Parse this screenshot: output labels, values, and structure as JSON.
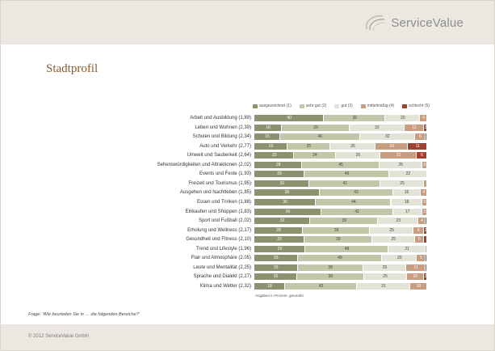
{
  "header": {
    "logo_text": "ServiceValue",
    "logo_icon": "swirl-logo-icon"
  },
  "page": {
    "title": "Stadtprofil"
  },
  "chart_data": {
    "type": "bar",
    "orientation": "horizontal",
    "stacked": true,
    "series_names": [
      "ausgezeichnet (1)",
      "sehr gut (2)",
      "gut (3)",
      "mittelmäßig (4)",
      "schlecht (5)"
    ],
    "colors": [
      "#8d9170",
      "#c3c6a8",
      "#e4e3d8",
      "#c99d80",
      "#a2412f"
    ],
    "categories": [
      "Arbeit und Ausbildung (1,89)",
      "Leben und Wohnen (2,39)",
      "Schulen und Bildung (2,34)",
      "Auto und Verkehr (2,77)",
      "Umwelt und Sauberkeit (2,64)",
      "Sehenswürdigkeiten und Attraktionen (2,02)",
      "Events und Feste (1,93)",
      "Freizeit und Tourismus (1,95)",
      "Ausgehen und Nachtleben (1,85)",
      "Essen und Trinken (1,88)",
      "Einkaufen und Shoppen (1,83)",
      "Sport und Fußball (2,02)",
      "Erholung und Wellness (2,17)",
      "Gesundheit und Fitness (2,10)",
      "Trend und Lifestyle (1,96)",
      "Flair und Atmosphäre (2,05)",
      "Leute und Mentalität (2,25)",
      "Sprache und Dialekt (2,27)",
      "Klima und Wetter (2,32)"
    ],
    "values": [
      [
        40,
        35,
        20,
        4,
        0
      ],
      [
        16,
        39,
        32,
        11,
        2
      ],
      [
        15,
        46,
        32,
        6,
        1
      ],
      [
        19,
        25,
        26,
        19,
        11
      ],
      [
        23,
        24,
        26,
        21,
        6
      ],
      [
        28,
        45,
        25,
        3,
        0
      ],
      [
        29,
        49,
        22,
        0,
        0
      ],
      [
        32,
        41,
        25,
        2,
        0
      ],
      [
        38,
        43,
        16,
        4,
        0
      ],
      [
        36,
        44,
        18,
        3,
        0
      ],
      [
        39,
        42,
        17,
        3,
        0
      ],
      [
        32,
        39,
        23,
        4,
        1
      ],
      [
        28,
        39,
        25,
        6,
        2
      ],
      [
        29,
        39,
        25,
        5,
        2
      ],
      [
        29,
        48,
        21,
        1,
        0
      ],
      [
        25,
        49,
        20,
        5,
        1
      ],
      [
        25,
        38,
        25,
        11,
        1
      ],
      [
        25,
        39,
        25,
        10,
        2
      ],
      [
        18,
        42,
        31,
        10,
        0
      ]
    ],
    "labels": [
      [
        "40",
        "35",
        "20",
        "4",
        ""
      ],
      [
        "16",
        "39",
        "32",
        "11",
        "2"
      ],
      [
        "15",
        "46",
        "32",
        "6",
        ""
      ],
      [
        "19",
        "25",
        "26",
        "19",
        "11"
      ],
      [
        "23",
        "24",
        "26",
        "21",
        "6"
      ],
      [
        "28",
        "45",
        "25",
        "3",
        ""
      ],
      [
        "29",
        "49",
        "22",
        "",
        ""
      ],
      [
        "32",
        "41",
        "25",
        "",
        ""
      ],
      [
        "38",
        "43",
        "16",
        "4",
        ""
      ],
      [
        "36",
        "44",
        "18",
        "3",
        ""
      ],
      [
        "39",
        "42",
        "17",
        "3",
        ""
      ],
      [
        "32",
        "39",
        "23",
        "4",
        ""
      ],
      [
        "28",
        "39",
        "25",
        "6",
        "2"
      ],
      [
        "29",
        "39",
        "25",
        "5",
        ""
      ],
      [
        "29",
        "48",
        "21",
        "",
        ""
      ],
      [
        "25",
        "49",
        "20",
        "5",
        ""
      ],
      [
        "25",
        "38",
        "25",
        "11",
        ""
      ],
      [
        "25",
        "39",
        "25",
        "10",
        "2"
      ],
      [
        "18",
        "42",
        "31",
        "10",
        ""
      ]
    ],
    "xlim": [
      0,
      100
    ],
    "note": "Angaben in Prozent, gerundet"
  },
  "question": "Frage: 'Wie beurteilen Sie in … die folgenden Bereiche?'",
  "footer": {
    "copyright": "© 2012 ServiceValue GmbH"
  }
}
